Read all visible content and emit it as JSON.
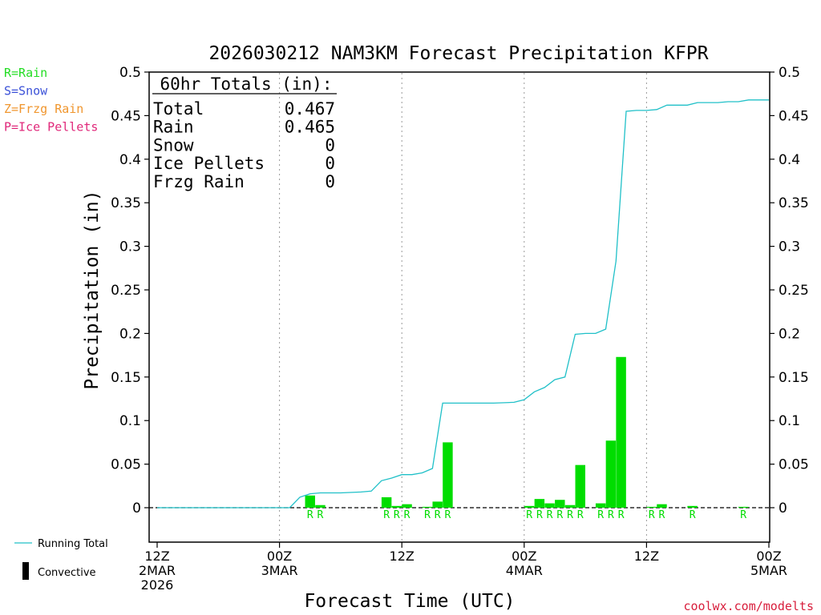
{
  "chart_data": {
    "type": "bar",
    "title": "2026030212 NAM3KM Forecast Precipitation KFPR",
    "xlabel": "Forecast Time (UTC)",
    "ylabel": "Precipitation (in)",
    "ylim": [
      -0.04,
      0.5
    ],
    "yticks": [
      "0.5",
      "0.45",
      "0.4",
      "0.35",
      "0.3",
      "0.25",
      "0.2",
      "0.15",
      "0.1",
      "0.05",
      "0"
    ],
    "ytick_values": [
      0.5,
      0.45,
      0.4,
      0.35,
      0.3,
      0.25,
      0.2,
      0.15,
      0.1,
      0.05,
      0
    ],
    "xlim_hours": [
      0,
      60
    ],
    "xticks": [
      {
        "hour": 0,
        "lines": [
          "12Z",
          "2MAR",
          "2026"
        ]
      },
      {
        "hour": 12,
        "lines": [
          "00Z",
          "3MAR"
        ]
      },
      {
        "hour": 24,
        "lines": [
          "12Z"
        ]
      },
      {
        "hour": 36,
        "lines": [
          "00Z",
          "4MAR"
        ]
      },
      {
        "hour": 48,
        "lines": [
          "12Z"
        ]
      },
      {
        "hour": 60,
        "lines": [
          "00Z",
          "5MAR"
        ]
      }
    ],
    "grid_x_hours": [
      12,
      24,
      36,
      48
    ],
    "legend_types": [
      {
        "label": "R=Rain",
        "color": "#22dd22"
      },
      {
        "label": "S=Snow",
        "color": "#3c52d8"
      },
      {
        "label": "Z=Frzg Rain",
        "color": "#f0962e"
      },
      {
        "label": "P=Ice Pellets",
        "color": "#e0287a"
      }
    ],
    "totals": {
      "heading": "60hr Totals (in):",
      "rows": [
        {
          "label": "Total",
          "value": "0.467"
        },
        {
          "label": "Rain",
          "value": "0.465"
        },
        {
          "label": "Snow",
          "value": "0"
        },
        {
          "label": "Ice Pellets",
          "value": "0"
        },
        {
          "label": "Frzg Rain",
          "value": "0"
        }
      ]
    },
    "bars": [
      {
        "hour": 15,
        "value": 0.014,
        "type": "R"
      },
      {
        "hour": 16,
        "value": 0.003,
        "type": "R"
      },
      {
        "hour": 22.5,
        "value": 0.012,
        "type": "R"
      },
      {
        "hour": 23.5,
        "value": 0.002,
        "type": "R"
      },
      {
        "hour": 24.5,
        "value": 0.004,
        "type": "R"
      },
      {
        "hour": 26.5,
        "value": 0.001,
        "type": "R"
      },
      {
        "hour": 27.5,
        "value": 0.007,
        "type": "R"
      },
      {
        "hour": 28.5,
        "value": 0.075,
        "type": "R"
      },
      {
        "hour": 36.5,
        "value": 0.002,
        "type": "R"
      },
      {
        "hour": 37.5,
        "value": 0.01,
        "type": "R"
      },
      {
        "hour": 38.5,
        "value": 0.005,
        "type": "R"
      },
      {
        "hour": 39.5,
        "value": 0.009,
        "type": "R"
      },
      {
        "hour": 40.5,
        "value": 0.003,
        "type": "R"
      },
      {
        "hour": 41.5,
        "value": 0.049,
        "type": "R"
      },
      {
        "hour": 43.5,
        "value": 0.005,
        "type": "R"
      },
      {
        "hour": 44.5,
        "value": 0.077,
        "type": "R"
      },
      {
        "hour": 45.5,
        "value": 0.173,
        "type": "R"
      },
      {
        "hour": 48.5,
        "value": 0.001,
        "type": "R"
      },
      {
        "hour": 49.5,
        "value": 0.004,
        "type": "R"
      },
      {
        "hour": 52.5,
        "value": 0.002,
        "type": "R"
      },
      {
        "hour": 57.5,
        "value": 0.001,
        "type": "R"
      }
    ],
    "running_total": {
      "name": "Running Total",
      "color": "#20c0c8",
      "points": [
        [
          0,
          0
        ],
        [
          13,
          0
        ],
        [
          14,
          0.012
        ],
        [
          15,
          0.016
        ],
        [
          16,
          0.017
        ],
        [
          18,
          0.017
        ],
        [
          20,
          0.018
        ],
        [
          21,
          0.019
        ],
        [
          22,
          0.031
        ],
        [
          23,
          0.034
        ],
        [
          24,
          0.038
        ],
        [
          25,
          0.038
        ],
        [
          26,
          0.04
        ],
        [
          27,
          0.045
        ],
        [
          28,
          0.12
        ],
        [
          30,
          0.12
        ],
        [
          33,
          0.12
        ],
        [
          35,
          0.121
        ],
        [
          36,
          0.124
        ],
        [
          37,
          0.133
        ],
        [
          38,
          0.138
        ],
        [
          39,
          0.147
        ],
        [
          40,
          0.15
        ],
        [
          41,
          0.199
        ],
        [
          42,
          0.2
        ],
        [
          43,
          0.2
        ],
        [
          44,
          0.205
        ],
        [
          45,
          0.283
        ],
        [
          46,
          0.455
        ],
        [
          47,
          0.456
        ],
        [
          48,
          0.456
        ],
        [
          49,
          0.457
        ],
        [
          50,
          0.462
        ],
        [
          51,
          0.462
        ],
        [
          52,
          0.462
        ],
        [
          53,
          0.465
        ],
        [
          55,
          0.465
        ],
        [
          56,
          0.466
        ],
        [
          57,
          0.466
        ],
        [
          58,
          0.468
        ],
        [
          60,
          0.468
        ]
      ]
    },
    "bottom_legend": [
      {
        "label": "Running Total",
        "color": "#20c0c8",
        "kind": "line"
      },
      {
        "label": "Convective",
        "color": "#000000",
        "kind": "bar"
      }
    ],
    "rain_color": "#00dd00",
    "credit": "coolwx.com/modelts",
    "credit_color": "#d81e3c",
    "grid": true
  }
}
